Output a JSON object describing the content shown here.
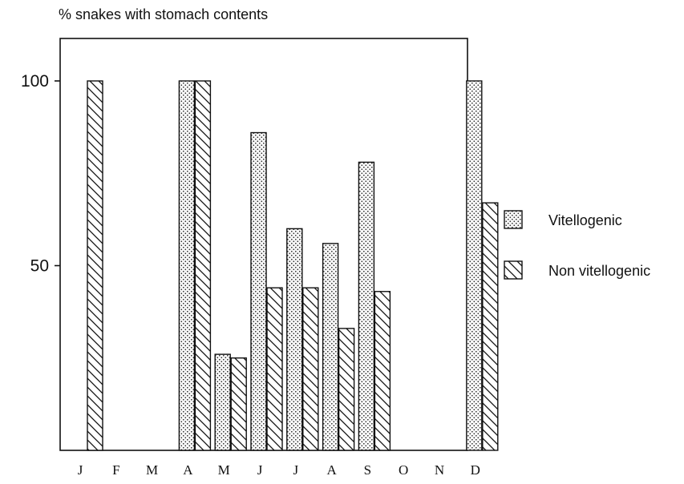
{
  "chart_data": {
    "type": "bar",
    "title": "% snakes with stomach contents",
    "xlabel": "",
    "ylabel": "",
    "categories": [
      "J",
      "F",
      "M",
      "A",
      "M",
      "J",
      "J",
      "A",
      "S",
      "O",
      "N",
      "D"
    ],
    "yticks": [
      50,
      100
    ],
    "ylim": [
      0,
      100
    ],
    "series": [
      {
        "name": "Vitellogenic",
        "pattern": "dots",
        "values": [
          null,
          null,
          null,
          100,
          26,
          86,
          60,
          56,
          78,
          null,
          null,
          100
        ]
      },
      {
        "name": "Non vitellogenic",
        "pattern": "hatch",
        "values": [
          100,
          null,
          null,
          100,
          25,
          44,
          44,
          33,
          43,
          null,
          null,
          67
        ]
      }
    ],
    "grid": false,
    "legend_position": "right"
  },
  "colors": {
    "ink": "#111111",
    "background": "#ffffff"
  }
}
